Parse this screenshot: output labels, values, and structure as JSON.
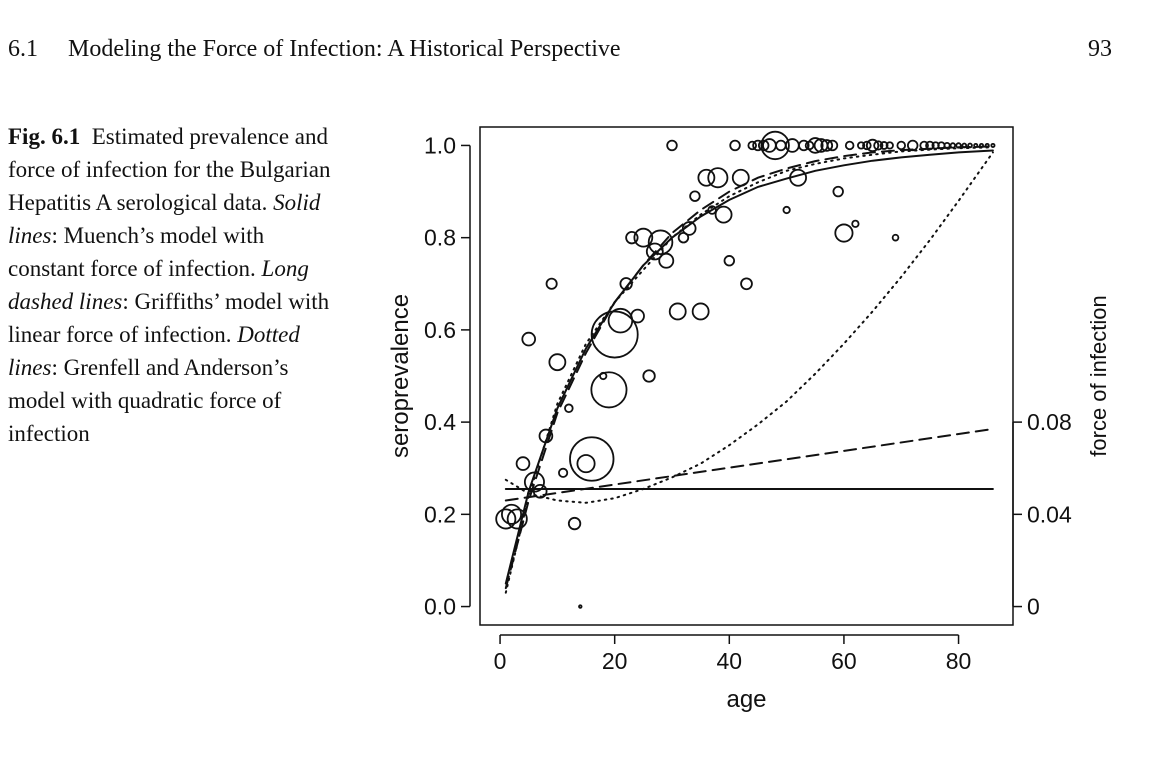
{
  "header": {
    "section_number": "6.1",
    "section_title": "Modeling the Force of Infection: A Historical Perspective",
    "page_number": "93"
  },
  "caption": {
    "label": "Fig. 6.1",
    "t1": "Estimated prevalence and force of infection for the Bulgarian Hepatitis A serological data.",
    "e1": "Solid lines",
    "t2": ": Muench’s model with constant force of infection.",
    "e2": "Long dashed lines",
    "t3": ": Griffiths’ model with linear force of infection.",
    "e3": "Dotted lines",
    "t4": ": Grenfell and Anderson’s model with quadratic force of infection"
  },
  "chart_data": {
    "type": "scatter",
    "xlabel": "age",
    "ylabel": "seroprevalence",
    "ylabel_right": "force of infection",
    "xlim": [
      -3.5,
      89.5
    ],
    "ylim": [
      -0.04,
      1.04
    ],
    "ylim_right": [
      -0.008,
      0.208
    ],
    "x_ticks": [
      0,
      20,
      40,
      60,
      80
    ],
    "x_tick_labels": [
      "0",
      "20",
      "40",
      "60",
      "80"
    ],
    "y_ticks": [
      0.0,
      0.2,
      0.4,
      0.6,
      0.8,
      1.0
    ],
    "y_tick_labels": [
      "0.0",
      "0.2",
      "0.4",
      "0.6",
      "0.8",
      "1.0"
    ],
    "y_right_ticks": [
      0,
      0.04,
      0.08
    ],
    "y_right_tick_labels": [
      "0",
      "0.04",
      "0.08"
    ],
    "grid": false,
    "points": [
      {
        "x": 1,
        "y": 0.19,
        "size": 3
      },
      {
        "x": 2,
        "y": 0.2,
        "size": 3
      },
      {
        "x": 3,
        "y": 0.19,
        "size": 3
      },
      {
        "x": 4,
        "y": 0.31,
        "size": 2
      },
      {
        "x": 5,
        "y": 0.58,
        "size": 2
      },
      {
        "x": 6,
        "y": 0.27,
        "size": 3
      },
      {
        "x": 7,
        "y": 0.25,
        "size": 2
      },
      {
        "x": 8,
        "y": 0.37,
        "size": 2
      },
      {
        "x": 9,
        "y": 0.7,
        "size": 1.6
      },
      {
        "x": 10,
        "y": 0.53,
        "size": 2.5
      },
      {
        "x": 11,
        "y": 0.29,
        "size": 1.3
      },
      {
        "x": 12,
        "y": 0.43,
        "size": 1.2
      },
      {
        "x": 13,
        "y": 0.18,
        "size": 1.8
      },
      {
        "x": 14,
        "y": 0.0,
        "size": 0.4
      },
      {
        "x": 15,
        "y": 0.31,
        "size": 2.7
      },
      {
        "x": 16,
        "y": 0.32,
        "size": 6.8
      },
      {
        "x": 18,
        "y": 0.5,
        "size": 1
      },
      {
        "x": 19,
        "y": 0.47,
        "size": 5.5
      },
      {
        "x": 20,
        "y": 0.59,
        "size": 7.2
      },
      {
        "x": 21,
        "y": 0.62,
        "size": 3.7
      },
      {
        "x": 22,
        "y": 0.7,
        "size": 1.8
      },
      {
        "x": 23,
        "y": 0.8,
        "size": 1.8
      },
      {
        "x": 24,
        "y": 0.63,
        "size": 2
      },
      {
        "x": 25,
        "y": 0.8,
        "size": 2.8
      },
      {
        "x": 26,
        "y": 0.5,
        "size": 1.8
      },
      {
        "x": 27,
        "y": 0.77,
        "size": 2.5
      },
      {
        "x": 28,
        "y": 0.79,
        "size": 3.7
      },
      {
        "x": 29,
        "y": 0.75,
        "size": 2.2
      },
      {
        "x": 30,
        "y": 1.0,
        "size": 1.5
      },
      {
        "x": 31,
        "y": 0.64,
        "size": 2.5
      },
      {
        "x": 32,
        "y": 0.8,
        "size": 1.5
      },
      {
        "x": 33,
        "y": 0.82,
        "size": 2
      },
      {
        "x": 34,
        "y": 0.89,
        "size": 1.5
      },
      {
        "x": 35,
        "y": 0.64,
        "size": 2.5
      },
      {
        "x": 36,
        "y": 0.93,
        "size": 2.5
      },
      {
        "x": 37,
        "y": 0.86,
        "size": 1.2
      },
      {
        "x": 38,
        "y": 0.93,
        "size": 3
      },
      {
        "x": 39,
        "y": 0.85,
        "size": 2.5
      },
      {
        "x": 40,
        "y": 0.75,
        "size": 1.5
      },
      {
        "x": 41,
        "y": 1.0,
        "size": 1.5
      },
      {
        "x": 42,
        "y": 0.93,
        "size": 2.5
      },
      {
        "x": 43,
        "y": 0.7,
        "size": 1.7
      },
      {
        "x": 44,
        "y": 1.0,
        "size": 1.2
      },
      {
        "x": 45,
        "y": 1.0,
        "size": 1.5
      },
      {
        "x": 46,
        "y": 1.0,
        "size": 1.5
      },
      {
        "x": 47,
        "y": 1.0,
        "size": 2
      },
      {
        "x": 48,
        "y": 1.0,
        "size": 4.3
      },
      {
        "x": 49,
        "y": 1.0,
        "size": 1.5
      },
      {
        "x": 50,
        "y": 0.86,
        "size": 1
      },
      {
        "x": 51,
        "y": 1.0,
        "size": 2
      },
      {
        "x": 52,
        "y": 0.93,
        "size": 2.5
      },
      {
        "x": 53,
        "y": 1.0,
        "size": 1.5
      },
      {
        "x": 54,
        "y": 1.0,
        "size": 1.2
      },
      {
        "x": 55,
        "y": 1.0,
        "size": 2.3
      },
      {
        "x": 56,
        "y": 1.0,
        "size": 2
      },
      {
        "x": 57,
        "y": 1.0,
        "size": 1.7
      },
      {
        "x": 58,
        "y": 1.0,
        "size": 1.5
      },
      {
        "x": 59,
        "y": 0.9,
        "size": 1.5
      },
      {
        "x": 60,
        "y": 0.81,
        "size": 2.7
      },
      {
        "x": 61,
        "y": 1.0,
        "size": 1.2
      },
      {
        "x": 62,
        "y": 0.83,
        "size": 1
      },
      {
        "x": 63,
        "y": 1.0,
        "size": 1
      },
      {
        "x": 64,
        "y": 1.0,
        "size": 1.2
      },
      {
        "x": 65,
        "y": 1.0,
        "size": 1.8
      },
      {
        "x": 66,
        "y": 1.0,
        "size": 1.3
      },
      {
        "x": 67,
        "y": 1.0,
        "size": 1.1
      },
      {
        "x": 68,
        "y": 1.0,
        "size": 1
      },
      {
        "x": 69,
        "y": 0.8,
        "size": 0.9
      },
      {
        "x": 70,
        "y": 1.0,
        "size": 1.2
      },
      {
        "x": 72,
        "y": 1.0,
        "size": 1.5
      },
      {
        "x": 74,
        "y": 1.0,
        "size": 1.2
      },
      {
        "x": 75,
        "y": 1.0,
        "size": 1.2
      },
      {
        "x": 76,
        "y": 1.0,
        "size": 1
      },
      {
        "x": 77,
        "y": 1.0,
        "size": 1
      },
      {
        "x": 78,
        "y": 1.0,
        "size": 0.8
      },
      {
        "x": 79,
        "y": 1.0,
        "size": 0.7
      },
      {
        "x": 80,
        "y": 1.0,
        "size": 0.7
      },
      {
        "x": 81,
        "y": 1.0,
        "size": 0.6
      },
      {
        "x": 82,
        "y": 1.0,
        "size": 0.6
      },
      {
        "x": 83,
        "y": 1.0,
        "size": 0.5
      },
      {
        "x": 84,
        "y": 1.0,
        "size": 0.5
      },
      {
        "x": 85,
        "y": 1.0,
        "size": 0.5
      },
      {
        "x": 86,
        "y": 1.0,
        "size": 0.5
      }
    ],
    "series": [
      {
        "style": "solid",
        "axis": "left",
        "x": [
          1,
          5,
          10,
          15,
          20,
          25,
          30,
          35,
          40,
          45,
          50,
          55,
          60,
          65,
          70,
          75,
          80,
          86
        ],
        "values": [
          0.05,
          0.25,
          0.43,
          0.56,
          0.66,
          0.74,
          0.8,
          0.846,
          0.882,
          0.91,
          0.928,
          0.945,
          0.957,
          0.967,
          0.974,
          0.98,
          0.985,
          0.989
        ]
      },
      {
        "style": "dashed",
        "axis": "left",
        "x": [
          1,
          5,
          10,
          15,
          20,
          25,
          30,
          35,
          40,
          45,
          50,
          55,
          60,
          65,
          70,
          75,
          80,
          86
        ],
        "values": [
          0.04,
          0.23,
          0.42,
          0.55,
          0.66,
          0.74,
          0.81,
          0.86,
          0.9,
          0.93,
          0.95,
          0.966,
          0.977,
          0.985,
          0.99,
          0.993,
          0.996,
          0.998
        ]
      },
      {
        "style": "dotted",
        "axis": "left",
        "x": [
          1,
          5,
          10,
          15,
          20,
          25,
          30,
          35,
          40,
          45,
          50,
          55,
          60,
          65,
          70,
          75,
          80,
          86
        ],
        "values": [
          0.03,
          0.24,
          0.44,
          0.57,
          0.66,
          0.73,
          0.8,
          0.85,
          0.89,
          0.92,
          0.945,
          0.96,
          0.972,
          0.98,
          0.987,
          0.991,
          0.994,
          0.996
        ]
      },
      {
        "style": "solid",
        "axis": "right",
        "x": [
          1,
          86
        ],
        "values": [
          0.051,
          0.051
        ]
      },
      {
        "style": "dashed",
        "axis": "right",
        "x": [
          1,
          86
        ],
        "values": [
          0.046,
          0.077
        ]
      },
      {
        "style": "dotted",
        "axis": "right",
        "x": [
          1,
          5,
          10,
          15,
          20,
          25,
          30,
          35,
          40,
          45,
          50,
          55,
          60,
          65,
          70,
          75,
          80,
          86
        ],
        "values": [
          0.055,
          0.049,
          0.046,
          0.045,
          0.047,
          0.051,
          0.056,
          0.062,
          0.07,
          0.079,
          0.089,
          0.101,
          0.114,
          0.128,
          0.143,
          0.159,
          0.176,
          0.197
        ]
      }
    ]
  }
}
